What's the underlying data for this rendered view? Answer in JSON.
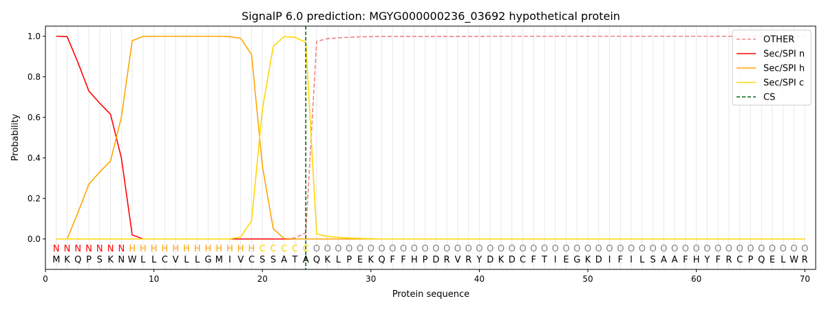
{
  "chart_data": {
    "type": "line",
    "title": "SignalP 6.0 prediction: MGYG000000236_03692 hypothetical protein",
    "xlabel": "Protein sequence",
    "ylabel": "Probability",
    "xlim": [
      0,
      71
    ],
    "ylim": [
      -0.15,
      1.05
    ],
    "xticks": [
      0,
      10,
      20,
      30,
      40,
      50,
      60,
      70
    ],
    "yticks": [
      "0.0",
      "0.2",
      "0.4",
      "0.6",
      "0.8",
      "1.0"
    ],
    "legend_position": "top-right",
    "sequence": "MKQPSKNWLLCVLLGMIVCSSATAQKLPEKQFFHPDRVRYDKDCFTIEGKDIFILSAAFHYFRCPQELWR",
    "labels": "NNNNNNNHHHHHHHHHHHHCCCCCOOOOOOOOOOOOOOOOOOOOOOOOOOOOOOOOOOOOOOOOOOOOOO",
    "label_colors": {
      "N": "#ff0000",
      "H": "#ffa500",
      "C": "#ffd700",
      "O": "#808080"
    },
    "cleavage_site": 24,
    "series": [
      {
        "name": "OTHER",
        "color": "#f08080",
        "dash": true,
        "values": [
          0,
          0,
          0,
          0,
          0,
          0,
          0,
          0,
          0,
          0,
          0,
          0,
          0,
          0,
          0,
          0,
          0,
          0,
          0,
          0,
          0,
          0,
          0.005,
          0.03,
          0.975,
          0.988,
          0.992,
          0.995,
          0.997,
          0.998,
          0.999,
          0.999,
          0.999,
          0.999,
          0.999,
          0.999,
          0.999,
          0.999,
          0.999,
          0.999,
          1,
          1,
          1,
          1,
          1,
          1,
          1,
          1,
          1,
          1,
          1,
          1,
          1,
          1,
          1,
          1,
          1,
          1,
          1,
          1,
          1,
          1,
          1,
          1,
          1,
          1,
          1,
          1,
          1,
          1
        ]
      },
      {
        "name": "Sec/SPI n",
        "color": "#ff0000",
        "values": [
          1.0,
          0.998,
          0.87,
          0.73,
          0.67,
          0.615,
          0.4,
          0.02,
          0,
          0,
          0,
          0,
          0,
          0,
          0,
          0,
          0,
          0,
          0,
          0,
          0,
          0,
          0,
          0,
          0,
          0,
          0,
          0,
          0,
          0,
          0,
          0,
          0,
          0,
          0,
          0,
          0,
          0,
          0,
          0,
          0,
          0,
          0,
          0,
          0,
          0,
          0,
          0,
          0,
          0,
          0,
          0,
          0,
          0,
          0,
          0,
          0,
          0,
          0,
          0,
          0,
          0,
          0,
          0,
          0,
          0,
          0,
          0,
          0,
          0
        ]
      },
      {
        "name": "Sec/SPI h",
        "color": "#ffa500",
        "values": [
          0,
          0,
          0.13,
          0.27,
          0.33,
          0.385,
          0.6,
          0.978,
          0.999,
          1,
          1,
          1,
          1,
          1,
          1,
          1,
          0.998,
          0.99,
          0.91,
          0.36,
          0.05,
          0.003,
          0,
          0,
          0,
          0,
          0,
          0,
          0,
          0,
          0,
          0,
          0,
          0,
          0,
          0,
          0,
          0,
          0,
          0,
          0,
          0,
          0,
          0,
          0,
          0,
          0,
          0,
          0,
          0,
          0,
          0,
          0,
          0,
          0,
          0,
          0,
          0,
          0,
          0,
          0,
          0,
          0,
          0,
          0,
          0,
          0,
          0,
          0,
          0
        ]
      },
      {
        "name": "Sec/SPI c",
        "color": "#ffd700",
        "values": [
          0,
          0,
          0,
          0,
          0,
          0,
          0,
          0,
          0,
          0,
          0,
          0,
          0,
          0,
          0,
          0,
          0,
          0.01,
          0.09,
          0.64,
          0.95,
          0.998,
          0.995,
          0.97,
          0.025,
          0.012,
          0.008,
          0.005,
          0.003,
          0.001,
          0,
          0,
          0,
          0,
          0,
          0,
          0,
          0,
          0,
          0,
          0,
          0,
          0,
          0,
          0,
          0,
          0,
          0,
          0,
          0,
          0,
          0,
          0,
          0,
          0,
          0,
          0,
          0,
          0,
          0,
          0,
          0,
          0,
          0,
          0,
          0,
          0,
          0,
          0,
          0
        ]
      },
      {
        "name": "CS",
        "color": "#006400",
        "dash": true,
        "vertical_at": 24
      }
    ]
  }
}
